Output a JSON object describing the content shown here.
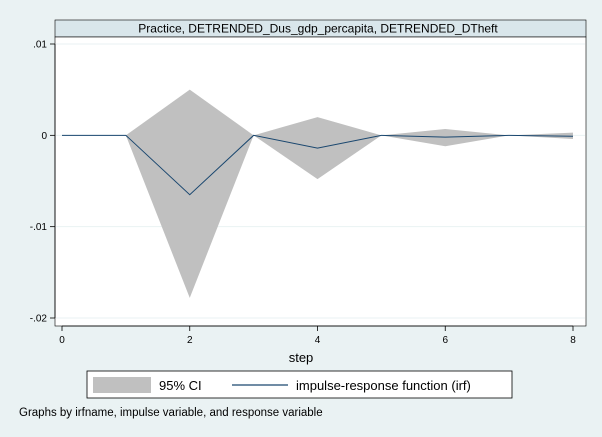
{
  "chart_data": {
    "type": "area",
    "title": "Practice, DETRENDED_Dus_gdp_percapita, DETRENDED_DTheft",
    "xlabel": "step",
    "ylabel": "",
    "xlim": [
      0,
      8
    ],
    "ylim": [
      -0.02,
      0.01
    ],
    "x_ticks": [
      0,
      2,
      4,
      6,
      8
    ],
    "x_tick_labels": [
      "0",
      "2",
      "4",
      "6",
      "8"
    ],
    "y_ticks": [
      0.01,
      0,
      -0.01,
      -0.02
    ],
    "y_tick_labels": [
      ".01",
      "0",
      "-.01",
      "-.02"
    ],
    "grid": true,
    "x": [
      0,
      1,
      2,
      3,
      4,
      5,
      6,
      7,
      8
    ],
    "series": [
      {
        "name": "95% CI",
        "kind": "band",
        "color": "#c0c0c0",
        "upper": [
          0,
          0,
          0.005,
          0,
          0.002,
          0,
          0.0007,
          0,
          0.0003
        ],
        "lower": [
          0,
          0,
          -0.0178,
          0,
          -0.0048,
          0,
          -0.0012,
          0,
          -0.0004
        ]
      },
      {
        "name": "impulse-response function (irf)",
        "kind": "line",
        "color": "#1a476f",
        "values": [
          0,
          0,
          -0.0065,
          0,
          -0.0014,
          0,
          -0.0002,
          0,
          -0.0001
        ]
      }
    ],
    "legend_position": "bottom",
    "note": "Graphs by irfname, impulse variable, and response variable"
  },
  "colors": {
    "background": "#eaf2f3",
    "plot_background": "#ffffff",
    "title_bar": "#d9e6eb",
    "grid": "#eaf2f3",
    "band": "#c0c0c0",
    "line": "#1a476f"
  }
}
